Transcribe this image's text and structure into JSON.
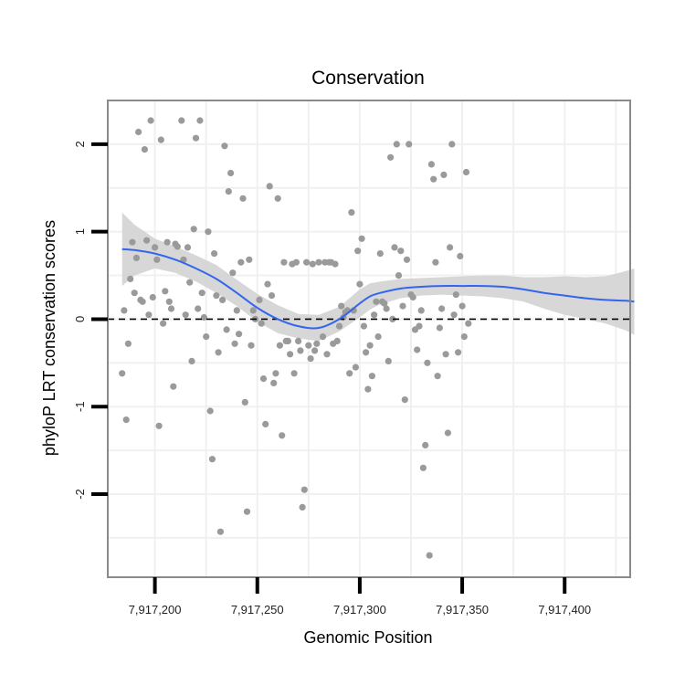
{
  "chart_data": {
    "type": "scatter",
    "title": "Conservation",
    "xlabel": "Genomic Position",
    "ylabel": "phyloP LRT conservation scores",
    "xlim": [
      7917177,
      7917432
    ],
    "ylim": [
      -2.95,
      2.5
    ],
    "x_ticks": [
      7917200,
      7917250,
      7917300,
      7917350,
      7917400
    ],
    "x_tick_labels": [
      "7,917,200",
      "7,917,250",
      "7,917,300",
      "7,917,350",
      "7,917,400"
    ],
    "y_ticks": [
      -2,
      -1,
      0,
      1,
      2
    ],
    "y_tick_labels": [
      "-2",
      "-1",
      "0",
      "1",
      "2"
    ],
    "grid": true,
    "reference_line": {
      "y": 0,
      "style": "dashed"
    },
    "colors": {
      "points": "#9a9a9a",
      "smooth": "#3366ee",
      "ribbon": "#d3d3d3",
      "panel_border": "#8a8a8a",
      "grid": "#f0f0f0"
    },
    "points": [
      [
        7917184,
        -0.62
      ],
      [
        7917185,
        0.1
      ],
      [
        7917186,
        -1.15
      ],
      [
        7917187,
        -0.28
      ],
      [
        7917188,
        0.46
      ],
      [
        7917189,
        0.88
      ],
      [
        7917190,
        0.3
      ],
      [
        7917191,
        0.7
      ],
      [
        7917192,
        2.14
      ],
      [
        7917193,
        0.22
      ],
      [
        7917194,
        0.2
      ],
      [
        7917195,
        1.94
      ],
      [
        7917196,
        0.9
      ],
      [
        7917197,
        0.05
      ],
      [
        7917198,
        2.27
      ],
      [
        7917199,
        0.25
      ],
      [
        7917200,
        0.82
      ],
      [
        7917201,
        0.68
      ],
      [
        7917202,
        -1.22
      ],
      [
        7917203,
        2.05
      ],
      [
        7917204,
        -0.05
      ],
      [
        7917205,
        0.32
      ],
      [
        7917206,
        0.88
      ],
      [
        7917207,
        0.2
      ],
      [
        7917208,
        0.12
      ],
      [
        7917209,
        -0.77
      ],
      [
        7917210,
        0.86
      ],
      [
        7917211,
        0.83
      ],
      [
        7917213,
        2.27
      ],
      [
        7917214,
        0.68
      ],
      [
        7917215,
        0.05
      ],
      [
        7917216,
        0.82
      ],
      [
        7917217,
        0.42
      ],
      [
        7917218,
        -0.48
      ],
      [
        7917219,
        1.03
      ],
      [
        7917220,
        2.07
      ],
      [
        7917221,
        0.12
      ],
      [
        7917222,
        2.27
      ],
      [
        7917223,
        0.3
      ],
      [
        7917224,
        0.02
      ],
      [
        7917225,
        -0.2
      ],
      [
        7917226,
        1.0
      ],
      [
        7917227,
        -1.05
      ],
      [
        7917228,
        -1.6
      ],
      [
        7917229,
        0.75
      ],
      [
        7917230,
        0.27
      ],
      [
        7917231,
        -0.38
      ],
      [
        7917232,
        -2.43
      ],
      [
        7917233,
        0.22
      ],
      [
        7917234,
        1.98
      ],
      [
        7917235,
        -0.12
      ],
      [
        7917236,
        1.46
      ],
      [
        7917237,
        1.67
      ],
      [
        7917238,
        0.53
      ],
      [
        7917239,
        -0.28
      ],
      [
        7917240,
        0.1
      ],
      [
        7917241,
        -0.17
      ],
      [
        7917242,
        0.65
      ],
      [
        7917243,
        1.38
      ],
      [
        7917244,
        -0.95
      ],
      [
        7917245,
        -2.2
      ],
      [
        7917246,
        0.68
      ],
      [
        7917247,
        -0.3
      ],
      [
        7917248,
        0.1
      ],
      [
        7917249,
        0.0
      ],
      [
        7917251,
        0.22
      ],
      [
        7917252,
        -0.05
      ],
      [
        7917253,
        -0.68
      ],
      [
        7917254,
        -1.2
      ],
      [
        7917255,
        0.4
      ],
      [
        7917256,
        1.52
      ],
      [
        7917257,
        0.27
      ],
      [
        7917258,
        -0.73
      ],
      [
        7917259,
        -0.62
      ],
      [
        7917260,
        1.38
      ],
      [
        7917261,
        -0.3
      ],
      [
        7917262,
        -1.33
      ],
      [
        7917263,
        0.65
      ],
      [
        7917264,
        -0.25
      ],
      [
        7917265,
        -0.25
      ],
      [
        7917266,
        -0.4
      ],
      [
        7917267,
        0.63
      ],
      [
        7917268,
        -0.62
      ],
      [
        7917269,
        0.65
      ],
      [
        7917270,
        -0.25
      ],
      [
        7917271,
        -0.36
      ],
      [
        7917272,
        -2.15
      ],
      [
        7917273,
        -1.95
      ],
      [
        7917274,
        0.65
      ],
      [
        7917275,
        -0.3
      ],
      [
        7917276,
        -0.45
      ],
      [
        7917277,
        0.63
      ],
      [
        7917278,
        -0.36
      ],
      [
        7917279,
        -0.28
      ],
      [
        7917280,
        0.65
      ],
      [
        7917282,
        -0.2
      ],
      [
        7917283,
        0.65
      ],
      [
        7917284,
        -0.4
      ],
      [
        7917285,
        0.65
      ],
      [
        7917286,
        0.65
      ],
      [
        7917287,
        -0.28
      ],
      [
        7917288,
        0.63
      ],
      [
        7917289,
        -0.25
      ],
      [
        7917290,
        -0.08
      ],
      [
        7917291,
        0.15
      ],
      [
        7917292,
        0.02
      ],
      [
        7917293,
        0.08
      ],
      [
        7917294,
        0.1
      ],
      [
        7917295,
        -0.62
      ],
      [
        7917296,
        1.22
      ],
      [
        7917297,
        0.1
      ],
      [
        7917298,
        -0.55
      ],
      [
        7917299,
        0.78
      ],
      [
        7917300,
        0.4
      ],
      [
        7917301,
        0.92
      ],
      [
        7917302,
        -0.08
      ],
      [
        7917303,
        -0.38
      ],
      [
        7917304,
        -0.8
      ],
      [
        7917305,
        -0.3
      ],
      [
        7917306,
        -0.65
      ],
      [
        7917307,
        0.05
      ],
      [
        7917308,
        0.2
      ],
      [
        7917309,
        -0.2
      ],
      [
        7917310,
        0.75
      ],
      [
        7917311,
        0.2
      ],
      [
        7917312,
        0.18
      ],
      [
        7917313,
        0.12
      ],
      [
        7917314,
        -0.48
      ],
      [
        7917315,
        1.85
      ],
      [
        7917316,
        0.0
      ],
      [
        7917317,
        0.82
      ],
      [
        7917318,
        2.0
      ],
      [
        7917319,
        0.5
      ],
      [
        7917320,
        0.78
      ],
      [
        7917321,
        0.15
      ],
      [
        7917322,
        -0.92
      ],
      [
        7917323,
        0.68
      ],
      [
        7917324,
        2.0
      ],
      [
        7917325,
        0.28
      ],
      [
        7917326,
        0.25
      ],
      [
        7917327,
        -0.12
      ],
      [
        7917328,
        -0.35
      ],
      [
        7917329,
        -0.08
      ],
      [
        7917330,
        0.1
      ],
      [
        7917331,
        -1.7
      ],
      [
        7917332,
        -1.44
      ],
      [
        7917333,
        -0.5
      ],
      [
        7917334,
        -2.7
      ],
      [
        7917335,
        1.77
      ],
      [
        7917336,
        1.6
      ],
      [
        7917337,
        0.65
      ],
      [
        7917338,
        -0.65
      ],
      [
        7917339,
        -0.1
      ],
      [
        7917340,
        0.12
      ],
      [
        7917341,
        1.65
      ],
      [
        7917342,
        -0.4
      ],
      [
        7917343,
        -1.3
      ],
      [
        7917344,
        0.82
      ],
      [
        7917345,
        2.0
      ],
      [
        7917346,
        0.05
      ],
      [
        7917347,
        0.28
      ],
      [
        7917348,
        -0.38
      ],
      [
        7917349,
        0.72
      ],
      [
        7917350,
        0.15
      ],
      [
        7917351,
        -0.2
      ],
      [
        7917352,
        1.68
      ],
      [
        7917353,
        -0.05
      ]
    ],
    "smooth": {
      "x": [
        7917184,
        7917190,
        7917200,
        7917210,
        7917220,
        7917230,
        7917240,
        7917250,
        7917260,
        7917270,
        7917280,
        7917290,
        7917300,
        7917305,
        7917310,
        7917320,
        7917330,
        7917340,
        7917350,
        7917360,
        7917370,
        7917380,
        7917390,
        7917400,
        7917410,
        7917420,
        7917430,
        7917434
      ],
      "y": [
        0.8,
        0.79,
        0.75,
        0.68,
        0.58,
        0.46,
        0.3,
        0.13,
        0.0,
        -0.08,
        -0.1,
        0.0,
        0.18,
        0.26,
        0.3,
        0.35,
        0.37,
        0.38,
        0.38,
        0.38,
        0.37,
        0.34,
        0.3,
        0.27,
        0.24,
        0.22,
        0.21,
        0.2
      ],
      "lower": [
        0.38,
        0.5,
        0.58,
        0.53,
        0.43,
        0.3,
        0.15,
        -0.03,
        -0.16,
        -0.22,
        -0.25,
        -0.14,
        0.02,
        0.11,
        0.17,
        0.24,
        0.27,
        0.28,
        0.27,
        0.26,
        0.24,
        0.2,
        0.12,
        0.05,
        0.0,
        -0.05,
        -0.13,
        -0.18
      ],
      "upper": [
        1.22,
        1.08,
        0.92,
        0.83,
        0.73,
        0.62,
        0.45,
        0.29,
        0.16,
        0.06,
        0.05,
        0.14,
        0.34,
        0.41,
        0.43,
        0.46,
        0.47,
        0.48,
        0.49,
        0.5,
        0.5,
        0.48,
        0.48,
        0.49,
        0.48,
        0.49,
        0.55,
        0.58
      ]
    }
  }
}
